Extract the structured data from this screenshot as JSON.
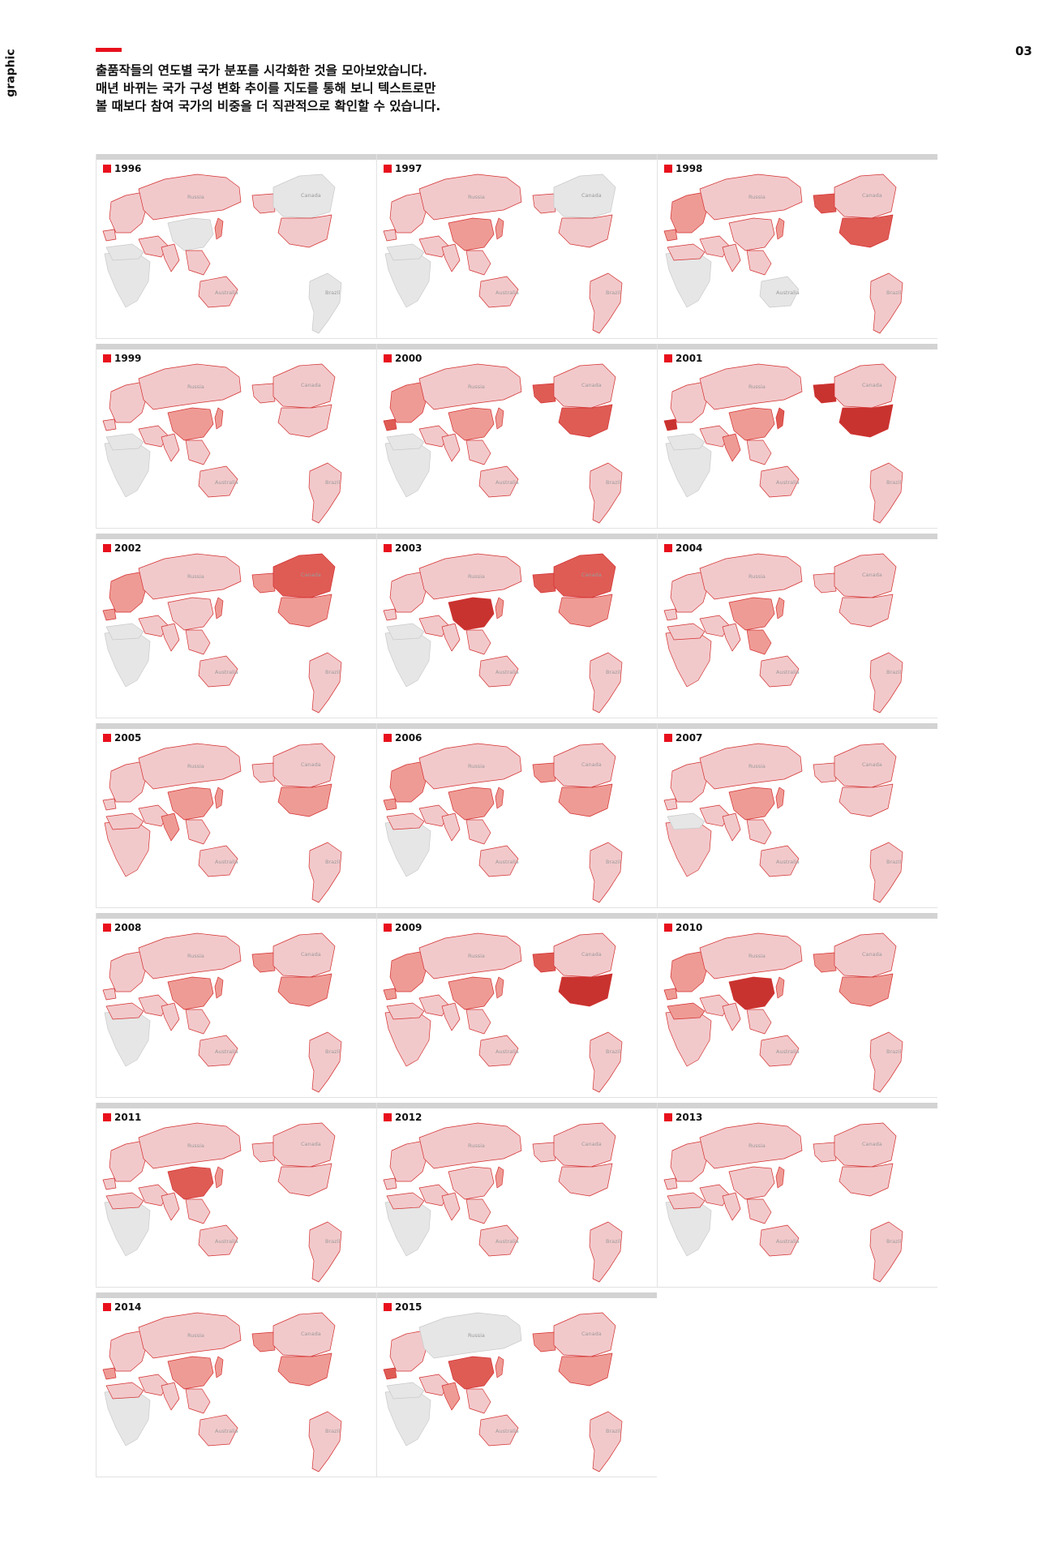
{
  "header": {
    "side_label": "graphic",
    "page_number": "03",
    "intro_lines": [
      "출품작들의 연도별 국가 분포를 시각화한 것을 모아보았습니다.",
      "매년 바뀌는 국가 구성 변화 추이를 지도를 통해 보니 텍스트로만",
      "볼 때보다 참여 국가의 비중을 더 직관적으로 확인할 수 있습니다."
    ]
  },
  "colors": {
    "accent": "#e8101c",
    "no_entry": "#e6e6e6",
    "low": "#f2c9cb",
    "mid": "#ef9b95",
    "high": "#df5c55",
    "top": "#c8332f",
    "border": "#d32f2f"
  },
  "map_labels": {
    "russia": "Russia",
    "canada": "Canada",
    "brazil": "Brazil",
    "australia": "Australia"
  },
  "maps": [
    {
      "year": "1996",
      "levels": {
        "russia": 1,
        "na": 0,
        "us": 1,
        "alaska": 1,
        "europe": 1,
        "china": 0,
        "japan": 2,
        "india": 1,
        "se_asia": 1,
        "australia": 1,
        "africa_n": 0,
        "africa": 0,
        "south_am": 0,
        "middle_east": 1,
        "iberia": 1
      }
    },
    {
      "year": "1997",
      "levels": {
        "russia": 1,
        "na": 0,
        "us": 1,
        "alaska": 1,
        "europe": 1,
        "china": 2,
        "japan": 2,
        "india": 1,
        "se_asia": 1,
        "australia": 1,
        "africa_n": 0,
        "africa": 0,
        "south_am": 1,
        "middle_east": 1,
        "iberia": 1
      }
    },
    {
      "year": "1998",
      "levels": {
        "russia": 1,
        "na": 1,
        "us": 3,
        "alaska": 3,
        "europe": 2,
        "china": 1,
        "japan": 2,
        "india": 1,
        "se_asia": 1,
        "australia": 0,
        "africa_n": 1,
        "africa": 0,
        "south_am": 1,
        "middle_east": 1,
        "iberia": 2
      }
    },
    {
      "year": "1999",
      "levels": {
        "russia": 1,
        "na": 1,
        "us": 1,
        "alaska": 1,
        "europe": 1,
        "china": 2,
        "japan": 2,
        "india": 1,
        "se_asia": 1,
        "australia": 1,
        "africa_n": 0,
        "africa": 0,
        "south_am": 1,
        "middle_east": 1,
        "iberia": 1
      }
    },
    {
      "year": "2000",
      "levels": {
        "russia": 1,
        "na": 1,
        "us": 3,
        "alaska": 3,
        "europe": 2,
        "china": 2,
        "japan": 2,
        "india": 1,
        "se_asia": 1,
        "australia": 1,
        "africa_n": 0,
        "africa": 0,
        "south_am": 1,
        "middle_east": 1,
        "iberia": 3
      }
    },
    {
      "year": "2001",
      "levels": {
        "russia": 1,
        "na": 1,
        "us": 4,
        "alaska": 4,
        "europe": 1,
        "china": 2,
        "japan": 3,
        "india": 2,
        "se_asia": 1,
        "australia": 1,
        "africa_n": 0,
        "africa": 0,
        "south_am": 1,
        "middle_east": 1,
        "iberia": 4
      }
    },
    {
      "year": "2002",
      "levels": {
        "russia": 1,
        "na": 3,
        "us": 2,
        "alaska": 2,
        "europe": 2,
        "china": 1,
        "japan": 2,
        "india": 1,
        "se_asia": 1,
        "australia": 1,
        "africa_n": 0,
        "africa": 0,
        "south_am": 1,
        "middle_east": 1,
        "iberia": 2
      }
    },
    {
      "year": "2003",
      "levels": {
        "russia": 1,
        "na": 3,
        "us": 2,
        "alaska": 3,
        "europe": 1,
        "china": 4,
        "japan": 2,
        "india": 1,
        "se_asia": 1,
        "australia": 1,
        "africa_n": 0,
        "africa": 0,
        "south_am": 1,
        "middle_east": 1,
        "iberia": 1
      }
    },
    {
      "year": "2004",
      "levels": {
        "russia": 1,
        "na": 1,
        "us": 1,
        "alaska": 1,
        "europe": 1,
        "china": 2,
        "japan": 2,
        "india": 1,
        "se_asia": 2,
        "australia": 1,
        "africa_n": 1,
        "africa": 1,
        "south_am": 1,
        "middle_east": 1,
        "iberia": 1
      }
    },
    {
      "year": "2005",
      "levels": {
        "russia": 1,
        "na": 1,
        "us": 2,
        "alaska": 1,
        "europe": 1,
        "china": 2,
        "japan": 2,
        "india": 2,
        "se_asia": 1,
        "australia": 1,
        "africa_n": 1,
        "africa": 1,
        "south_am": 1,
        "middle_east": 1,
        "iberia": 1
      }
    },
    {
      "year": "2006",
      "levels": {
        "russia": 1,
        "na": 1,
        "us": 2,
        "alaska": 2,
        "europe": 2,
        "china": 2,
        "japan": 2,
        "india": 1,
        "se_asia": 1,
        "australia": 1,
        "africa_n": 1,
        "africa": 0,
        "south_am": 1,
        "middle_east": 1,
        "iberia": 2
      }
    },
    {
      "year": "2007",
      "levels": {
        "russia": 1,
        "na": 1,
        "us": 1,
        "alaska": 1,
        "europe": 1,
        "china": 2,
        "japan": 2,
        "india": 1,
        "se_asia": 1,
        "australia": 1,
        "africa_n": 0,
        "africa": 1,
        "south_am": 1,
        "middle_east": 1,
        "iberia": 1
      }
    },
    {
      "year": "2008",
      "levels": {
        "russia": 1,
        "na": 1,
        "us": 2,
        "alaska": 2,
        "europe": 1,
        "china": 2,
        "japan": 2,
        "india": 1,
        "se_asia": 1,
        "australia": 1,
        "africa_n": 1,
        "africa": 0,
        "south_am": 1,
        "middle_east": 1,
        "iberia": 1
      }
    },
    {
      "year": "2009",
      "levels": {
        "russia": 1,
        "na": 1,
        "us": 4,
        "alaska": 3,
        "europe": 2,
        "china": 2,
        "japan": 2,
        "india": 1,
        "se_asia": 1,
        "australia": 1,
        "africa_n": 1,
        "africa": 1,
        "south_am": 1,
        "middle_east": 1,
        "iberia": 2
      }
    },
    {
      "year": "2010",
      "levels": {
        "russia": 1,
        "na": 1,
        "us": 2,
        "alaska": 2,
        "europe": 2,
        "china": 4,
        "japan": 2,
        "india": 1,
        "se_asia": 1,
        "australia": 1,
        "africa_n": 2,
        "africa": 1,
        "south_am": 1,
        "middle_east": 1,
        "iberia": 2
      }
    },
    {
      "year": "2011",
      "levels": {
        "russia": 1,
        "na": 1,
        "us": 1,
        "alaska": 1,
        "europe": 1,
        "china": 3,
        "japan": 2,
        "india": 1,
        "se_asia": 1,
        "australia": 1,
        "africa_n": 1,
        "africa": 0,
        "south_am": 1,
        "middle_east": 1,
        "iberia": 1
      }
    },
    {
      "year": "2012",
      "levels": {
        "russia": 1,
        "na": 1,
        "us": 1,
        "alaska": 1,
        "europe": 1,
        "china": 1,
        "japan": 2,
        "india": 1,
        "se_asia": 1,
        "australia": 1,
        "africa_n": 1,
        "africa": 0,
        "south_am": 1,
        "middle_east": 1,
        "iberia": 1
      }
    },
    {
      "year": "2013",
      "levels": {
        "russia": 1,
        "na": 1,
        "us": 1,
        "alaska": 1,
        "europe": 1,
        "china": 1,
        "japan": 2,
        "india": 1,
        "se_asia": 1,
        "australia": 1,
        "africa_n": 1,
        "africa": 0,
        "south_am": 1,
        "middle_east": 1,
        "iberia": 1
      }
    },
    {
      "year": "2014",
      "levels": {
        "russia": 1,
        "na": 1,
        "us": 2,
        "alaska": 2,
        "europe": 1,
        "china": 2,
        "japan": 2,
        "india": 1,
        "se_asia": 1,
        "australia": 1,
        "africa_n": 1,
        "africa": 0,
        "south_am": 1,
        "middle_east": 1,
        "iberia": 2
      }
    },
    {
      "year": "2015",
      "levels": {
        "russia": 0,
        "na": 1,
        "us": 2,
        "alaska": 2,
        "europe": 1,
        "china": 3,
        "japan": 2,
        "india": 2,
        "se_asia": 1,
        "australia": 1,
        "africa_n": 0,
        "africa": 0,
        "south_am": 1,
        "middle_east": 1,
        "iberia": 3
      }
    }
  ]
}
